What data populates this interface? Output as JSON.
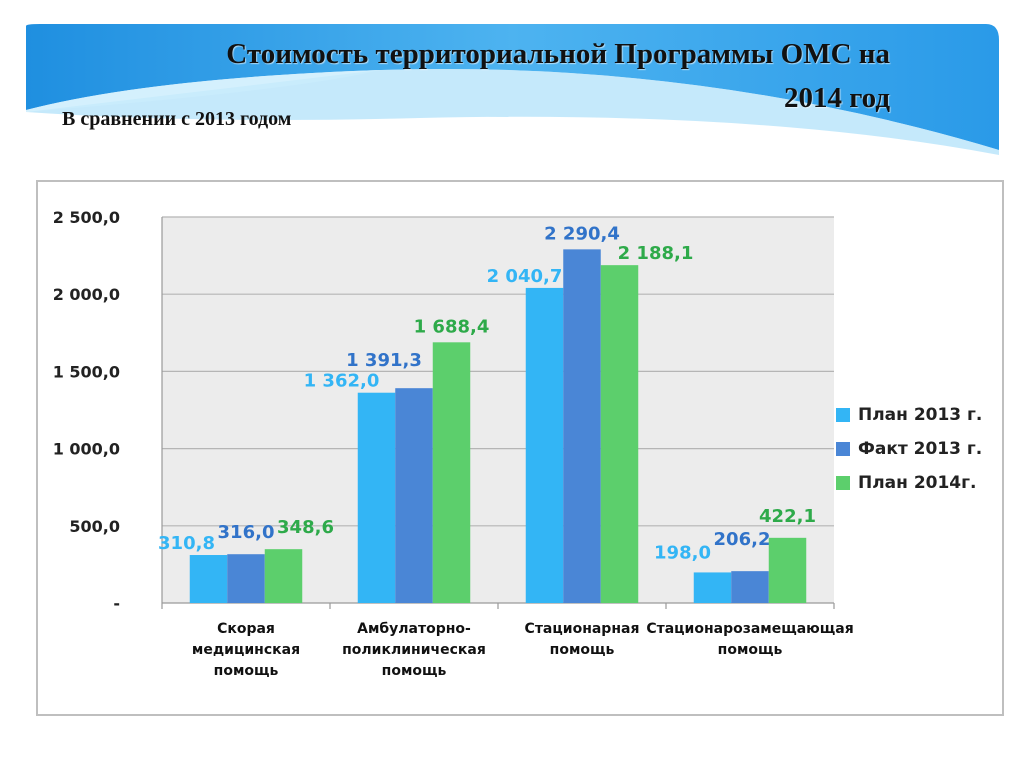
{
  "header": {
    "title_line1": "Стоимость территориальной Программы ОМС на",
    "title_line2": "2014 год",
    "subtitle": "В сравнении с 2013 годом"
  },
  "colors": {
    "series": [
      "#33b5f5",
      "#4a86d6",
      "#5ccf6c"
    ],
    "label": [
      "#33b5f5",
      "#3173c9",
      "#2eaa4a"
    ],
    "banner_light": "#b8e4fa",
    "banner_dark": "#2a9ae8"
  },
  "chart_data": {
    "type": "bar",
    "categories": [
      "Скорая\nмедицинская\nпомощь",
      "Амбулаторно-\nполиклиническая\nпомощь",
      "Стационарная\nпомощь",
      "Стационарозамещающая\nпомощь"
    ],
    "series": [
      {
        "name": "План 2013 г.",
        "values": [
          310.8,
          1362.0,
          2040.7,
          198.0
        ],
        "labels": [
          "310,8",
          "1 362,0",
          "2 040,7",
          "198,0"
        ]
      },
      {
        "name": "Факт 2013 г.",
        "values": [
          316.0,
          1391.3,
          2290.4,
          206.2
        ],
        "labels": [
          "316,0",
          "1 391,3",
          "2 290,4",
          "206,2"
        ]
      },
      {
        "name": "План 2014г.",
        "values": [
          348.6,
          1688.4,
          2188.1,
          422.1
        ],
        "labels": [
          "348,6",
          "1 688,4",
          "2 188,1",
          "422,1"
        ]
      }
    ],
    "yticks": [
      0,
      500,
      1000,
      1500,
      2000,
      2500
    ],
    "ytick_labels": [
      "-",
      "500,0",
      "1 000,0",
      "1 500,0",
      "2 000,0",
      "2 500,0"
    ],
    "ylim": [
      0,
      2500
    ],
    "grid": true,
    "legend": "right"
  }
}
